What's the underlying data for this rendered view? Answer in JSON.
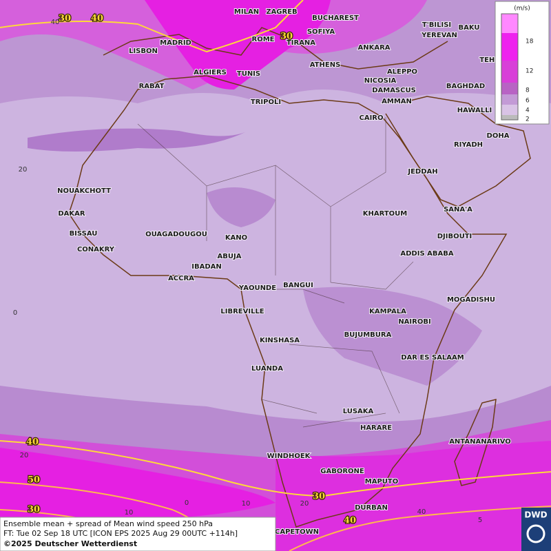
{
  "cities": [
    "MILAN",
    "ZAGREB",
    "BUCHAREST",
    "T'BILISI",
    "BAKU",
    "SOFIYA",
    "YEREVAN",
    "MADRID",
    "ROME",
    "TIRANA",
    "ANKARA",
    "TEHRA",
    "LISBON",
    "ALGIERS",
    "TUNIS",
    "ATHENS",
    "ALEPPO",
    "RABAT",
    "NICOSIA",
    "BAGHDAD",
    "DAMASCUS",
    "AMMAN",
    "TRIPOLI",
    "HAWALLI",
    "CAIRO",
    "DOHA",
    "RIYADH",
    "NOUAKCHOTT",
    "JEDDAH",
    "DAKAR",
    "SANA'A",
    "KHARTOUM",
    "BISSAU",
    "OUAGADOUGOU",
    "KANO",
    "DJIBOUTI",
    "CONAKRY",
    "ABUJA",
    "ADDIS ABABA",
    "IBADAN",
    "ACCRA",
    "YAOUNDE",
    "BANGUI",
    "MOGADISHU",
    "LIBREVILLE",
    "KAMPALA",
    "NAIROBI",
    "BUJUMBURA",
    "KINSHASA",
    "DAR ES SALAAM",
    "LUANDA",
    "LUSAKA",
    "HARARE",
    "ANTANANARIVO",
    "WINDHOEK",
    "GABORONE",
    "MAPUTO",
    "DURBAN",
    "CAPETOWN"
  ],
  "contour_labels": [
    30,
    40,
    30,
    40,
    50,
    30,
    30,
    40
  ],
  "grid_labels": [
    40,
    20,
    0,
    20,
    0,
    10,
    10,
    20,
    40,
    5
  ],
  "legend": {
    "unit": "(m/s)",
    "labels": [
      18,
      12,
      8,
      6,
      4,
      2
    ]
  },
  "caption": {
    "line1": "Ensemble mean + spread of Mean wind speed 250 hPa",
    "line2": "FT: Tue 02 Sep 18 UTC [ICON EPS 2025 Aug 29 00UTC +114h]",
    "copyright": "©2025 Deutscher Wetterdienst"
  },
  "logo": "DWD"
}
